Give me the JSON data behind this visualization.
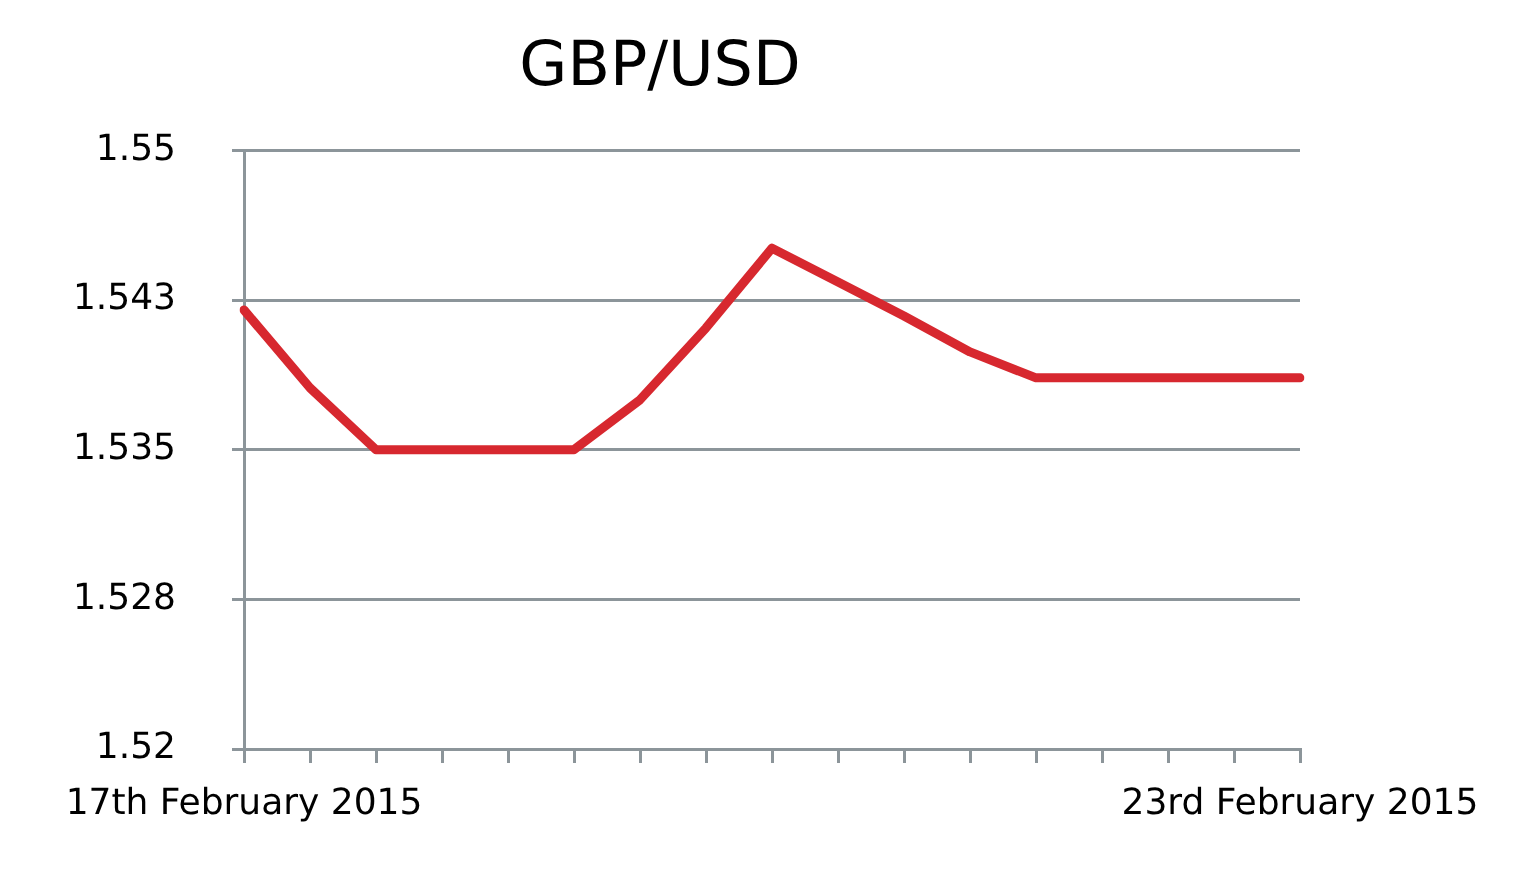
{
  "chart_data": {
    "type": "line",
    "title": "GBP/USD",
    "categories": [
      "17th February 2015",
      null,
      null,
      null,
      null,
      null,
      null,
      null,
      null,
      null,
      null,
      null,
      null,
      null,
      null,
      null,
      "23rd February 2015"
    ],
    "series": [
      {
        "color": "#d7282f",
        "values": [
          1.542,
          1.5381,
          1.535,
          1.535,
          1.535,
          1.535,
          1.5375,
          1.5411,
          1.5451,
          1.5434,
          1.5417,
          1.5399,
          1.5386,
          1.5386,
          1.5386,
          1.5386,
          1.5386
        ]
      }
    ],
    "ylim": [
      1.52,
      1.55
    ],
    "yticks": [
      1.52,
      {
        "value": 1.5275,
        "label": "1.528"
      },
      1.535,
      {
        "value": 1.5425,
        "label": "1.543"
      },
      1.55
    ],
    "grid": "y"
  }
}
